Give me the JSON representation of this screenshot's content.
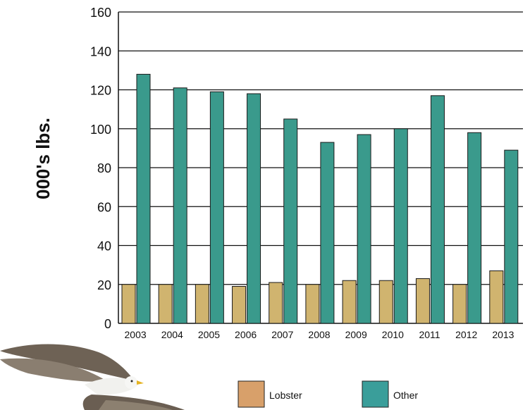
{
  "chart_data": {
    "type": "bar",
    "ylabel": "000's lbs.",
    "categories": [
      "2003",
      "2004",
      "2005",
      "2006",
      "2007",
      "2008",
      "2009",
      "2010",
      "2011",
      "2012",
      "2013"
    ],
    "series": [
      {
        "name": "Lobster",
        "color": "#d0b46f",
        "legend_color": "#d8a06a",
        "values": [
          20,
          20,
          20,
          19,
          21,
          20,
          22,
          22,
          23,
          20,
          27
        ]
      },
      {
        "name": "Other",
        "color": "#3a9a8c",
        "legend_color": "#3a9e9a",
        "values": [
          128,
          121,
          119,
          118,
          105,
          93,
          97,
          100,
          117,
          98,
          89
        ]
      }
    ],
    "ylim": [
      0,
      160
    ],
    "yticks": [
      0,
      20,
      40,
      60,
      80,
      100,
      120,
      140,
      160
    ],
    "grid": true,
    "legend_position": "bottom",
    "decoration": "seagull-photo"
  }
}
